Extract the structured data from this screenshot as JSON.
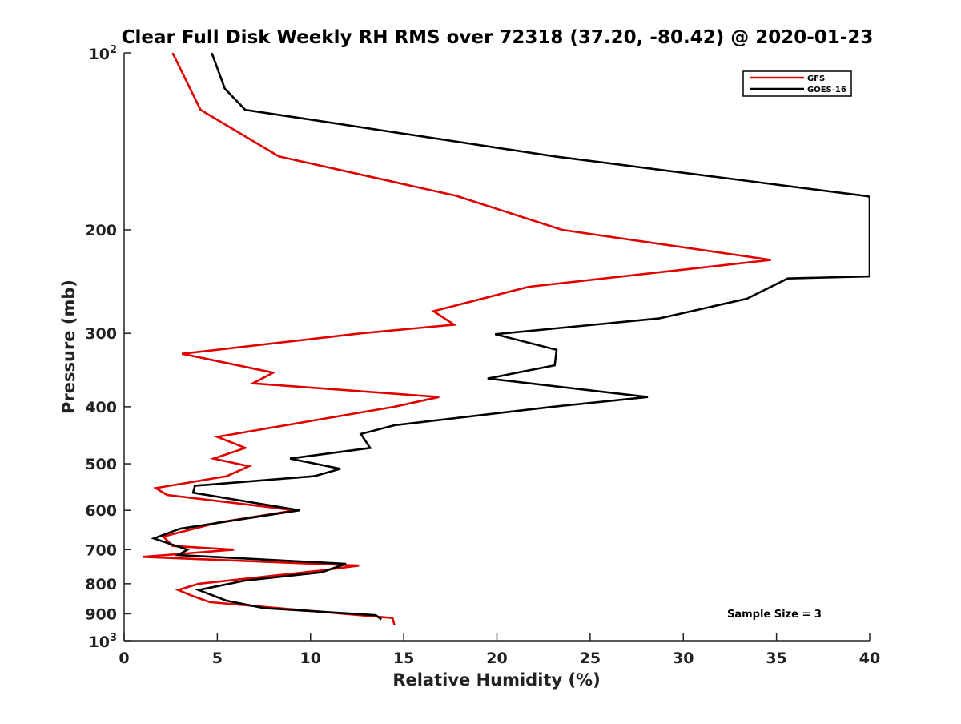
{
  "chart_data": {
    "type": "line",
    "title": "Clear Full Disk Weekly RH RMS over 72318 (37.20, -80.42) @ 2020-01-23",
    "xlabel": "Relative Humidity (%)",
    "ylabel": "Pressure (mb)",
    "xlim": [
      0,
      40
    ],
    "ylim": [
      100,
      1000
    ],
    "y_scale": "log",
    "y_reversed": true,
    "grid": false,
    "legend_position": "top-right",
    "x_ticks": [
      0,
      5,
      10,
      15,
      20,
      25,
      30,
      35,
      40
    ],
    "x_tick_labels": [
      "0",
      "5",
      "10",
      "15",
      "20",
      "25",
      "30",
      "35",
      "40"
    ],
    "y_ticks": [
      {
        "value": 100,
        "base": "10",
        "exp": "2"
      },
      {
        "value": 200,
        "label": "200"
      },
      {
        "value": 300,
        "label": "300"
      },
      {
        "value": 400,
        "label": "400"
      },
      {
        "value": 500,
        "label": "500"
      },
      {
        "value": 600,
        "label": "600"
      },
      {
        "value": 700,
        "label": "700"
      },
      {
        "value": 800,
        "label": "800"
      },
      {
        "value": 900,
        "label": "900"
      },
      {
        "value": 1000,
        "base": "10",
        "exp": "3"
      }
    ],
    "annotation": "Sample Size = 3",
    "series": [
      {
        "name": "GFS",
        "color": "#e00000",
        "points": [
          [
            2.6,
            100
          ],
          [
            4.1,
            125
          ],
          [
            8.3,
            150
          ],
          [
            17.8,
            175
          ],
          [
            23.5,
            200
          ],
          [
            34.7,
            225
          ],
          [
            21.7,
            250
          ],
          [
            16.6,
            275
          ],
          [
            17.7,
            290
          ],
          [
            12.7,
            300
          ],
          [
            3.1,
            325
          ],
          [
            8.0,
            350
          ],
          [
            6.9,
            365
          ],
          [
            16.9,
            385
          ],
          [
            14.5,
            400
          ],
          [
            5.0,
            450
          ],
          [
            6.5,
            470
          ],
          [
            4.8,
            490
          ],
          [
            6.7,
            505
          ],
          [
            5.5,
            525
          ],
          [
            1.7,
            550
          ],
          [
            2.3,
            565
          ],
          [
            9.2,
            600
          ],
          [
            5.0,
            630
          ],
          [
            2.1,
            665
          ],
          [
            2.6,
            690
          ],
          [
            5.9,
            700
          ],
          [
            1.0,
            720
          ],
          [
            12.6,
            745
          ],
          [
            10.5,
            760
          ],
          [
            4.0,
            800
          ],
          [
            2.9,
            820
          ],
          [
            3.7,
            840
          ],
          [
            4.6,
            860
          ],
          [
            14.4,
            915
          ],
          [
            14.5,
            940
          ]
        ]
      },
      {
        "name": "GOES-16",
        "color": "#000000",
        "points": [
          [
            4.7,
            100
          ],
          [
            5.4,
            115
          ],
          [
            6.5,
            125
          ],
          [
            23.1,
            150
          ],
          [
            39.7,
            175
          ],
          [
            40.0,
            175.7
          ],
          [
            40.0,
            240
          ],
          [
            35.6,
            242
          ],
          [
            33.4,
            262
          ],
          [
            28.7,
            283
          ],
          [
            19.9,
            301
          ],
          [
            23.2,
            320
          ],
          [
            23.1,
            340
          ],
          [
            19.5,
            358
          ],
          [
            28.1,
            385
          ],
          [
            23.0,
            400
          ],
          [
            14.5,
            430
          ],
          [
            12.7,
            445
          ],
          [
            13.2,
            470
          ],
          [
            8.9,
            490
          ],
          [
            11.6,
            510
          ],
          [
            10.2,
            525
          ],
          [
            3.8,
            545
          ],
          [
            3.7,
            560
          ],
          [
            9.4,
            600
          ],
          [
            3.0,
            645
          ],
          [
            1.6,
            670
          ],
          [
            3.4,
            700
          ],
          [
            2.9,
            715
          ],
          [
            11.9,
            740
          ],
          [
            10.6,
            765
          ],
          [
            6.5,
            790
          ],
          [
            4.0,
            820
          ],
          [
            5.5,
            855
          ],
          [
            7.5,
            880
          ],
          [
            13.5,
            905
          ],
          [
            13.8,
            920
          ]
        ]
      }
    ]
  }
}
